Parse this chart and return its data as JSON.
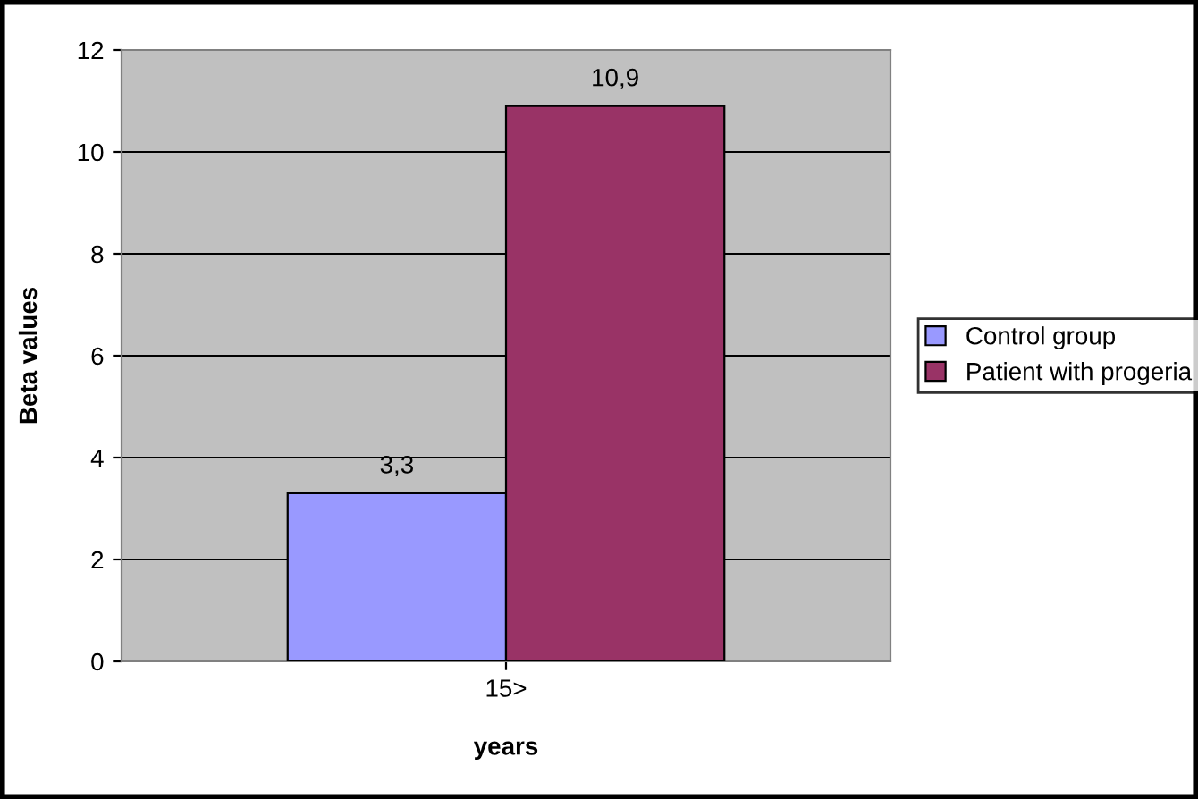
{
  "chart_data": {
    "type": "bar",
    "xlabel": "years",
    "ylabel": "Beta values",
    "categories": [
      "15>"
    ],
    "series": [
      {
        "name": "Control group",
        "color": "#9999ff",
        "values": [
          3.3
        ],
        "value_labels": [
          "3,3"
        ]
      },
      {
        "name": "Patient with progeria",
        "color": "#993366",
        "values": [
          10.9
        ],
        "value_labels": [
          "10,9"
        ]
      }
    ],
    "ylim": [
      0,
      12
    ],
    "yticks": [
      0,
      2,
      4,
      6,
      8,
      10,
      12
    ],
    "grid": "y",
    "legend": "right"
  }
}
